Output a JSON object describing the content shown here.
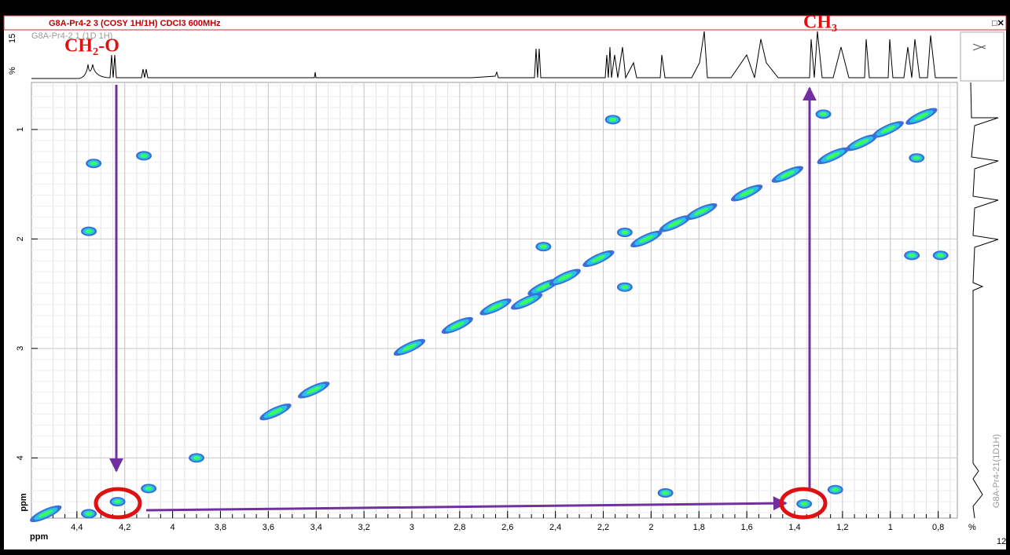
{
  "window_title": "G8A-Pr4-2 3 (COSY 1H/1H) CDCl3 600MHz",
  "window_controls": "□✕",
  "top_trace_label": "G8A-Pr4-2 1 (1D 1H)",
  "top_trace_ticks": [
    "15",
    "%"
  ],
  "right_trace_label": "G8A-Pr4-21(1D1H)",
  "right_trace_ticks": [
    "%",
    "12"
  ],
  "annotations": [
    "CH₂-O",
    "CH₃"
  ],
  "chart_data": {
    "type": "cosy",
    "x_label": "ppm",
    "y_label": "ppm",
    "xlim": [
      4.59,
      0.72
    ],
    "xticks": [
      {
        "value": 4.4,
        "label": "4,4"
      },
      {
        "value": 4.2,
        "label": "4,2"
      },
      4,
      {
        "value": 3.8,
        "label": "3,8"
      },
      {
        "value": 3.6,
        "label": "3,6"
      },
      {
        "value": 3.4,
        "label": "3,4"
      },
      {
        "value": 3.2,
        "label": "3,2"
      },
      3,
      {
        "value": 2.8,
        "label": "2,8"
      },
      {
        "value": 2.6,
        "label": "2,6"
      },
      {
        "value": 2.4,
        "label": "2,4"
      },
      {
        "value": 2.2,
        "label": "2,2"
      },
      2,
      {
        "value": 1.8,
        "label": "1,8"
      },
      {
        "value": 1.6,
        "label": "1,6"
      },
      {
        "value": 1.4,
        "label": "1,4"
      },
      {
        "value": 1.2,
        "label": "1,2"
      },
      1,
      {
        "value": 0.8,
        "label": "0,8"
      }
    ],
    "ylim": [
      0.57,
      4.55
    ],
    "yticks": [
      1,
      2,
      3,
      4
    ],
    "grid": true,
    "x": [
      4.33,
      4.12,
      4.35,
      2.16,
      2.45,
      2.45,
      2.11,
      2.11,
      1.28,
      0.89,
      0.91,
      0.79,
      1.94,
      1.36,
      1.23,
      3.41,
      2.81,
      3.01,
      2.65,
      4.53,
      4.35,
      4.23,
      4.1,
      3.9,
      3.57,
      2.52,
      2.36,
      2.22,
      2.02,
      1.9,
      1.79,
      1.6,
      1.43,
      1.24,
      1.12,
      1.01,
      0.87
    ],
    "values": [
      1.31,
      1.24,
      1.93,
      0.91,
      2.07,
      2.44,
      2.44,
      1.94,
      0.86,
      1.26,
      2.15,
      2.15,
      4.32,
      4.42,
      4.29,
      3.38,
      2.79,
      2.99,
      2.62,
      4.51,
      4.51,
      4.4,
      4.28,
      4.0,
      3.58,
      2.57,
      2.35,
      2.18,
      2.0,
      1.86,
      1.75,
      1.58,
      1.41,
      1.24,
      1.12,
      1.0,
      0.88
    ],
    "colors": [
      "#3a6fd8",
      "#26c4e6",
      "#3cff5c"
    ]
  }
}
